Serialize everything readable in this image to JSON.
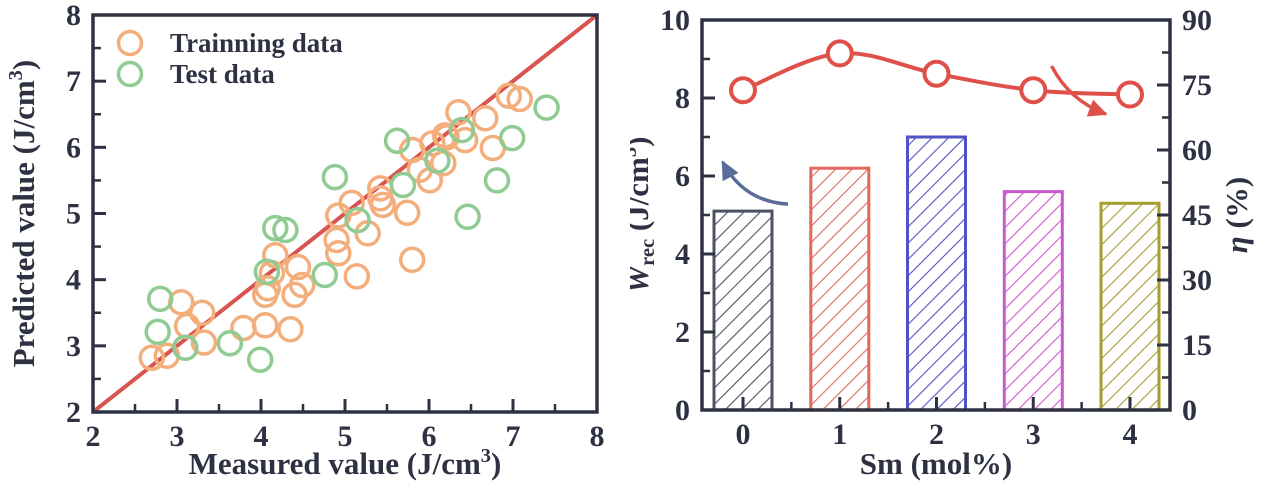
{
  "figure": {
    "background": "#ffffff",
    "ink_color": "#2d3142"
  },
  "chart_data": [
    {
      "type": "scatter",
      "name": "prediction-parity-plot",
      "xlabel_parts": [
        {
          "t": "Measured value (J/cm"
        },
        {
          "t": "3",
          "sup": true
        },
        {
          "t": ")"
        }
      ],
      "ylabel_parts": [
        {
          "t": "Predicted value (J/cm"
        },
        {
          "t": "3",
          "sup": true
        },
        {
          "t": ")"
        }
      ],
      "xlim": [
        2,
        8
      ],
      "ylim": [
        2,
        8
      ],
      "xticks": [
        2,
        3,
        4,
        5,
        6,
        7,
        8
      ],
      "yticks": [
        2,
        3,
        4,
        5,
        6,
        7,
        8
      ],
      "minor_step": 0.5,
      "grid": false,
      "legend": {
        "position": "top-left"
      },
      "identity_line": {
        "from": [
          2,
          2
        ],
        "to": [
          8,
          8
        ],
        "color": "#d9534f"
      },
      "series": [
        {
          "name": "Trainning data",
          "color": "#f3ae7c",
          "points": [
            [
              2.7,
              2.82
            ],
            [
              2.88,
              2.85
            ],
            [
              3.05,
              3.66
            ],
            [
              3.3,
              3.5
            ],
            [
              3.12,
              3.3
            ],
            [
              3.32,
              3.05
            ],
            [
              3.79,
              3.27
            ],
            [
              4.05,
              3.31
            ],
            [
              4.35,
              3.25
            ],
            [
              4.05,
              3.77
            ],
            [
              4.08,
              3.87
            ],
            [
              4.13,
              4.1
            ],
            [
              4.17,
              4.37
            ],
            [
              4.4,
              3.77
            ],
            [
              4.44,
              4.19
            ],
            [
              4.49,
              3.92
            ],
            [
              4.92,
              4.97
            ],
            [
              4.9,
              4.6
            ],
            [
              4.92,
              4.4
            ],
            [
              5.27,
              4.7
            ],
            [
              5.14,
              4.05
            ],
            [
              5.42,
              5.23
            ],
            [
              5.08,
              5.16
            ],
            [
              5.45,
              5.13
            ],
            [
              5.42,
              5.38
            ],
            [
              5.74,
              5.01
            ],
            [
              5.8,
              4.3
            ],
            [
              5.8,
              5.96
            ],
            [
              5.89,
              5.66
            ],
            [
              6.01,
              5.5
            ],
            [
              6.04,
              6.06
            ],
            [
              6.17,
              5.76
            ],
            [
              6.19,
              6.18
            ],
            [
              6.21,
              6.15
            ],
            [
              6.35,
              6.53
            ],
            [
              6.43,
              6.11
            ],
            [
              6.67,
              6.44
            ],
            [
              6.76,
              5.99
            ],
            [
              6.95,
              6.78
            ],
            [
              7.08,
              6.73
            ]
          ]
        },
        {
          "name": "Test data",
          "color": "#8fcb92",
          "points": [
            [
              2.8,
              3.71
            ],
            [
              2.77,
              3.21
            ],
            [
              3.1,
              2.97
            ],
            [
              3.63,
              3.04
            ],
            [
              3.99,
              2.79
            ],
            [
              4.07,
              4.12
            ],
            [
              4.17,
              4.78
            ],
            [
              4.29,
              4.75
            ],
            [
              4.76,
              4.07
            ],
            [
              4.88,
              5.55
            ],
            [
              5.15,
              4.9
            ],
            [
              5.62,
              6.1
            ],
            [
              5.69,
              5.43
            ],
            [
              6.1,
              5.8
            ],
            [
              6.39,
              6.26
            ],
            [
              6.46,
              4.95
            ],
            [
              6.81,
              5.5
            ],
            [
              6.99,
              6.14
            ],
            [
              7.4,
              6.6
            ]
          ]
        }
      ]
    },
    {
      "type": "bar",
      "name": "wrec-eta-vs-sm",
      "categories": [
        0,
        1,
        2,
        3,
        4
      ],
      "xlabel_parts": [
        {
          "t": "Sm (mol%)"
        }
      ],
      "left_axis": {
        "label_parts": [
          {
            "t": "W",
            "italic": true
          },
          {
            "t": "rec",
            "sub": true
          },
          {
            "t": " (J/cm"
          },
          {
            "t": "3",
            "sup": true
          },
          {
            "t": ")"
          }
        ],
        "range": [
          0,
          10
        ],
        "ticks": [
          0,
          2,
          4,
          6,
          8,
          10
        ],
        "minor_step": 1
      },
      "right_axis": {
        "label_parts": [
          {
            "t": "η",
            "italic": true
          },
          {
            "t": " (%)"
          }
        ],
        "range": [
          0,
          90
        ],
        "ticks": [
          0,
          15,
          30,
          45,
          60,
          75,
          90
        ],
        "minor_step": 7.5
      },
      "bars": {
        "axis": "left",
        "values": [
          5.1,
          6.2,
          7.0,
          5.6,
          5.3
        ],
        "colors": [
          "#4d5264",
          "#e0685c",
          "#5053c6",
          "#cb59ce",
          "#a79d2c"
        ],
        "hatch": "/"
      },
      "line": {
        "axis": "right",
        "values_percent": [
          73.8,
          82.3,
          77.6,
          73.8,
          72.8
        ],
        "color": "#e0504a",
        "marker": "open-circle"
      },
      "arrows": [
        {
          "name": "left-axis-arrow",
          "color": "#5c6c99",
          "from_value": [
            0.465,
            5.28
          ],
          "to_value": [
            -0.21,
            6.36
          ],
          "bend": 22
        },
        {
          "name": "right-axis-arrow",
          "color": "#e0504a",
          "from_value": [
            3.19,
            8.82
          ],
          "to_value": [
            3.75,
            7.59
          ],
          "bend": -14
        }
      ]
    }
  ]
}
